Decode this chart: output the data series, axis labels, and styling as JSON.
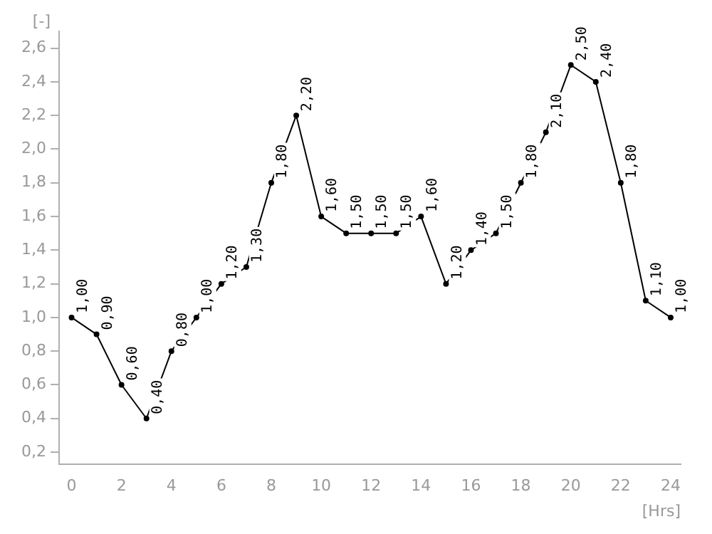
{
  "chart_data": {
    "type": "line",
    "xlabel": "[Hrs]",
    "ylabel": "[-]",
    "x": [
      0,
      1,
      2,
      3,
      4,
      5,
      6,
      7,
      8,
      9,
      10,
      11,
      12,
      13,
      14,
      15,
      16,
      17,
      18,
      19,
      20,
      21,
      22,
      23,
      24
    ],
    "series": [
      {
        "color": "#000000",
        "values": [
          1.0,
          0.9,
          0.6,
          0.4,
          0.8,
          1.0,
          1.2,
          1.3,
          1.8,
          2.2,
          1.6,
          1.5,
          1.5,
          1.5,
          1.6,
          1.2,
          1.4,
          1.5,
          1.8,
          2.1,
          2.5,
          2.4,
          1.8,
          1.1,
          1.0
        ],
        "value_labels": [
          "1,00",
          "0,90",
          "0,60",
          "0,40",
          "0,80",
          "1,00",
          "1,20",
          "1,30",
          "1,80",
          "2,20",
          "1,60",
          "1,50",
          "1,50",
          "1,50",
          "1,60",
          "1,20",
          "1,40",
          "1,50",
          "1,80",
          "2,10",
          "2,50",
          "2,40",
          "1,80",
          "1,10",
          "1,00"
        ]
      }
    ],
    "xlim": [
      -0.5,
      24.4
    ],
    "ylim": [
      0.13,
      2.7
    ],
    "xticks": [
      0,
      2,
      4,
      6,
      8,
      10,
      12,
      14,
      16,
      18,
      20,
      22,
      24
    ],
    "yticks": [
      {
        "value": 0.2,
        "label": "0,2"
      },
      {
        "value": 0.4,
        "label": "0,4"
      },
      {
        "value": 0.6,
        "label": "0,6"
      },
      {
        "value": 0.8,
        "label": "0,8"
      },
      {
        "value": 1.0,
        "label": "1,0"
      },
      {
        "value": 1.2,
        "label": "1,2"
      },
      {
        "value": 1.4,
        "label": "1,4"
      },
      {
        "value": 1.6,
        "label": "1,6"
      },
      {
        "value": 1.8,
        "label": "1,8"
      },
      {
        "value": 2.0,
        "label": "2,0"
      },
      {
        "value": 2.2,
        "label": "2,2"
      },
      {
        "value": 2.4,
        "label": "2,4"
      },
      {
        "value": 2.6,
        "label": "2,6"
      }
    ],
    "grid": false,
    "legend": false,
    "marker": "circle",
    "line_style": "solid"
  }
}
